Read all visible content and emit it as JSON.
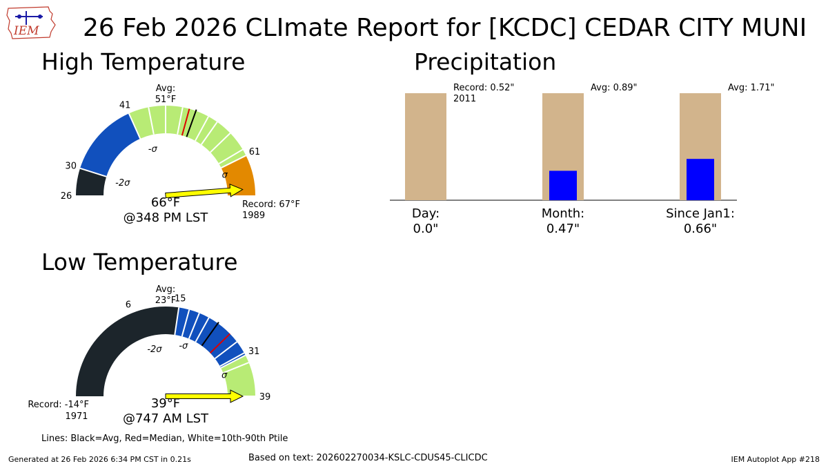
{
  "title": "26 Feb 2026 CLImate Report for [KCDC] CEDAR CITY MUNI",
  "logo_text": "IEM",
  "footer": {
    "generated": "Generated at 26 Feb 2026 6:34 PM CST in 0.21s",
    "based_on": "Based on text: 202602270034-KSLC-CDUS45-CLICDC",
    "app": "IEM Autoplot App #218"
  },
  "legend_note": "Lines: Black=Avg, Red=Median, White=10th-90th Ptile",
  "chart_data": [
    {
      "type": "gauge",
      "title": "High Temperature",
      "range": [
        26,
        67
      ],
      "avg_label": "Avg:",
      "avg_value": "51°F",
      "avg": 51,
      "median": 50,
      "percentile_lines": [
        44,
        46.5,
        49,
        53,
        54.5,
        57,
        60
      ],
      "tick_values": [
        {
          "value": 26,
          "label": "26"
        },
        {
          "value": 30,
          "label": "30"
        },
        {
          "value": 41,
          "label": "41"
        },
        {
          "value": 61,
          "label": "61"
        }
      ],
      "sigma_labels": [
        {
          "value": 30,
          "label": "-2σ"
        },
        {
          "value": 41,
          "label": "-σ"
        },
        {
          "value": 61,
          "label": "σ"
        }
      ],
      "observed": 66,
      "observed_label": "66°F",
      "observed_time": "@348 PM LST",
      "record_label": "Record: 67°F",
      "record_year": "1989",
      "colors": {
        "below_2sigma": "#1c252b",
        "minus_band": "#1150bd",
        "normal": "#b8eb75",
        "plus_band": "#e38900"
      }
    },
    {
      "type": "gauge",
      "title": "Low Temperature",
      "range": [
        -14,
        39
      ],
      "avg_label": "Avg:",
      "avg_value": "23°F",
      "avg": 23,
      "median": 26,
      "percentile_lines": [
        17,
        19,
        21,
        28,
        30.5,
        32.5
      ],
      "tick_values": [
        {
          "value": 6,
          "label": "6"
        },
        {
          "value": 15,
          "label": "15"
        },
        {
          "value": 31,
          "label": "31"
        },
        {
          "value": 39,
          "label": "39"
        }
      ],
      "sigma_labels": [
        {
          "value": 6,
          "label": "-2σ"
        },
        {
          "value": 15,
          "label": "-σ"
        },
        {
          "value": 31,
          "label": "σ"
        }
      ],
      "observed": 39,
      "observed_label": "39°F",
      "observed_time": "@747 AM LST",
      "record_label": "Record: -14°F",
      "record_year": "1971",
      "colors": {
        "below_2sigma": "#1c252b",
        "minus_band": "#1150bd",
        "normal": "#b8eb75",
        "plus_band": "#e38900"
      }
    },
    {
      "type": "bar",
      "title": "Precipitation",
      "categories": [
        "Day:",
        "Month:",
        "Since Jan1:"
      ],
      "observed_labels": [
        "0.0\"",
        "0.47\"",
        "0.66\""
      ],
      "observed": [
        0.0,
        0.47,
        0.66
      ],
      "reference": [
        0.52,
        0.89,
        1.71
      ],
      "reference_labels": [
        "Record: 0.52\"",
        "Avg: 0.89\"",
        "Avg: 1.71\""
      ],
      "reference_sublabels": [
        "2011",
        "",
        ""
      ],
      "colors": {
        "reference": "#d2b48c",
        "observed": "#0000ff"
      }
    }
  ]
}
